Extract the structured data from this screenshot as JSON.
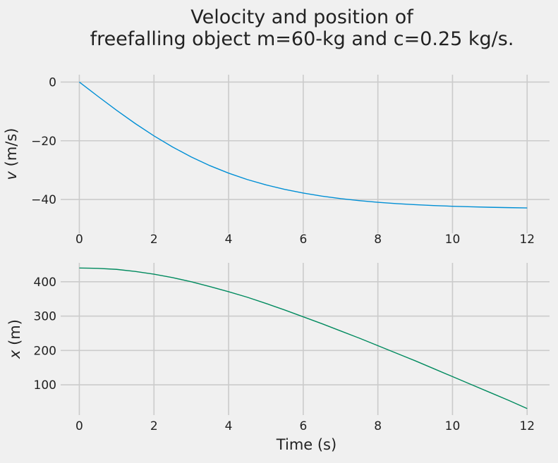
{
  "figure": {
    "title_line1": "Velocity and position of",
    "title_line2": "freefalling object m=60-kg and c=0.25 kg/s."
  },
  "chart_data": [
    {
      "type": "line",
      "xlabel": "",
      "ylabel": "v (m/s)",
      "xlim": [
        -0.5,
        12.6
      ],
      "ylim": [
        -51.5,
        2.5
      ],
      "xticks": [
        0,
        2,
        4,
        6,
        8,
        10,
        12
      ],
      "yticks": [
        0,
        -20,
        -40
      ],
      "ytick_labels": [
        "0",
        "−20",
        "−40"
      ],
      "grid": true,
      "series": [
        {
          "color": "#008fd5",
          "x": [
            0,
            0.5,
            1,
            1.5,
            2,
            2.5,
            3,
            3.5,
            4,
            4.5,
            5,
            5.5,
            6,
            6.5,
            7,
            7.5,
            8,
            8.5,
            9,
            9.5,
            10,
            10.5,
            11,
            11.5,
            12
          ],
          "y": [
            0,
            -4.88,
            -9.64,
            -14.15,
            -18.34,
            -22.13,
            -25.52,
            -28.48,
            -31.03,
            -33.2,
            -35.02,
            -36.55,
            -37.81,
            -38.85,
            -39.7,
            -40.39,
            -40.95,
            -41.4,
            -41.77,
            -42.06,
            -42.3,
            -42.49,
            -42.65,
            -42.77,
            -42.87
          ]
        }
      ]
    },
    {
      "type": "line",
      "xlabel": "Time (s)",
      "ylabel": "x (m)",
      "xlim": [
        -0.5,
        12.6
      ],
      "ylim": [
        12,
        455
      ],
      "xticks": [
        0,
        2,
        4,
        6,
        8,
        10,
        12
      ],
      "yticks": [
        100,
        200,
        300,
        400
      ],
      "ytick_labels": [
        "100",
        "200",
        "300",
        "400"
      ],
      "grid": true,
      "series": [
        {
          "color": "#008a5e",
          "x": [
            0,
            0.5,
            1,
            1.5,
            2,
            2.5,
            3,
            3.5,
            4,
            4.5,
            5,
            5.5,
            6,
            6.5,
            7,
            7.5,
            8,
            8.5,
            9,
            9.5,
            10,
            10.5,
            11,
            11.5,
            12
          ],
          "y": [
            440,
            439,
            436,
            430,
            422,
            412,
            400,
            386,
            371,
            355,
            337,
            318,
            298,
            278,
            257,
            236,
            214,
            192,
            170,
            147,
            124,
            101,
            78,
            55,
            31
          ]
        }
      ]
    }
  ]
}
